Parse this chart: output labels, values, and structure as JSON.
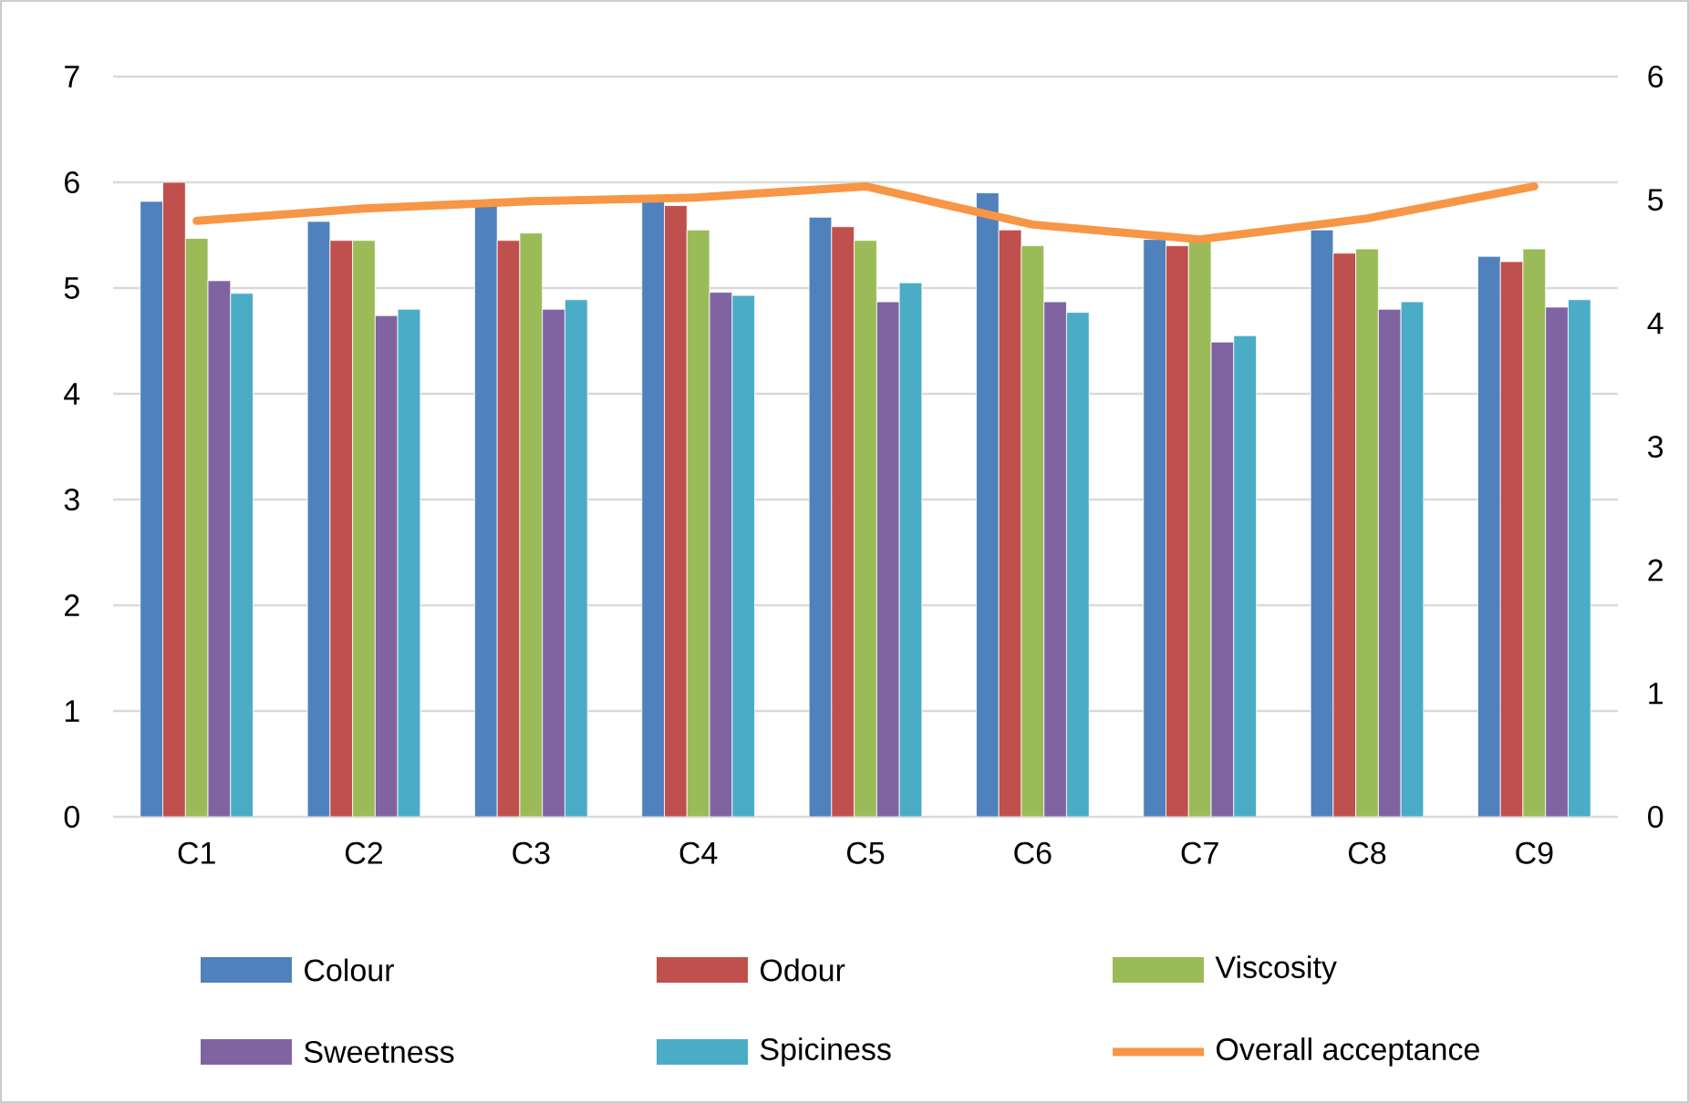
{
  "chart_data": {
    "type": "bar",
    "categories": [
      "C1",
      "C2",
      "C3",
      "C4",
      "C5",
      "C6",
      "C7",
      "C8",
      "C9"
    ],
    "series": [
      {
        "name": "Colour",
        "color": "#4f81bd",
        "values": [
          5.82,
          5.63,
          5.78,
          5.82,
          5.67,
          5.9,
          5.46,
          5.55,
          5.3
        ]
      },
      {
        "name": "Odour",
        "color": "#c0504d",
        "values": [
          6.0,
          5.45,
          5.45,
          5.78,
          5.58,
          5.55,
          5.4,
          5.33,
          5.25
        ]
      },
      {
        "name": "Viscosity",
        "color": "#9bbb59",
        "values": [
          5.47,
          5.45,
          5.52,
          5.55,
          5.45,
          5.4,
          5.45,
          5.37,
          5.37
        ]
      },
      {
        "name": "Sweetness",
        "color": "#8064a2",
        "values": [
          5.07,
          4.74,
          4.8,
          4.96,
          4.87,
          4.87,
          4.49,
          4.8,
          4.82
        ]
      },
      {
        "name": "Spiciness",
        "color": "#4bacc6",
        "values": [
          4.95,
          4.8,
          4.89,
          4.93,
          5.05,
          4.77,
          4.55,
          4.87,
          4.89
        ]
      },
      {
        "name": "Overall acceptance",
        "color": "#f79646",
        "type": "line",
        "axis": "y2",
        "marker": "none",
        "values": [
          4.83,
          4.93,
          4.99,
          5.02,
          5.11,
          4.8,
          4.68,
          4.85,
          5.11
        ]
      }
    ],
    "ylim": [
      0,
      7
    ],
    "yticks": [
      0,
      1,
      2,
      3,
      4,
      5,
      6,
      7
    ],
    "y2lim": [
      0,
      6
    ],
    "y2ticks": [
      0,
      1,
      2,
      3,
      4,
      5,
      6
    ],
    "grid": "y",
    "legend": "bottom"
  }
}
